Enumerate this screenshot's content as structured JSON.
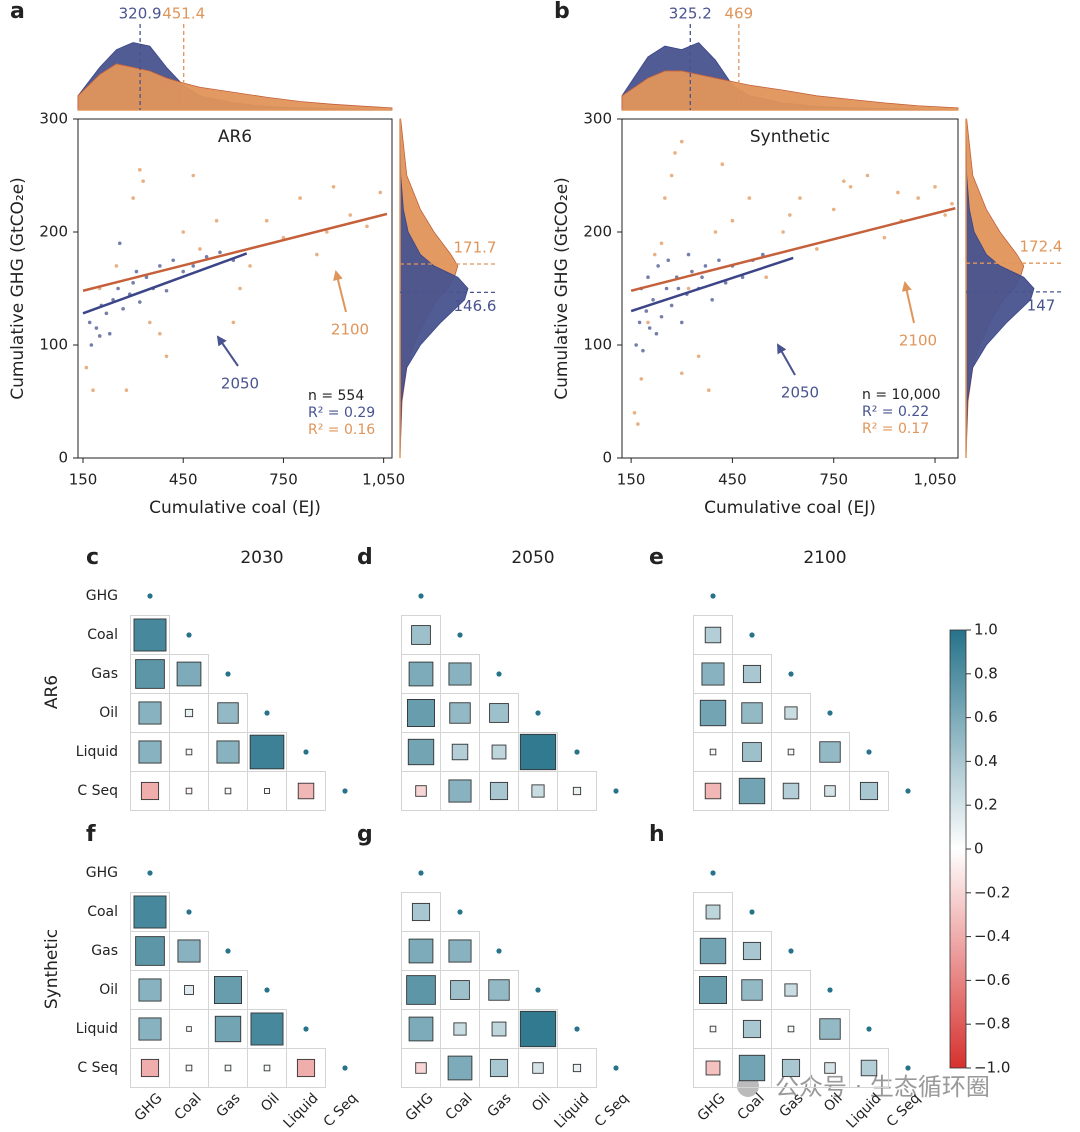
{
  "chart_data": [
    {
      "type": "scatter",
      "letter": "a",
      "title": "AR6",
      "xlabel": "Cumulative coal (EJ)",
      "ylabel": "Cumulative GHG (GtCO₂e)",
      "xlim": [
        135,
        1075
      ],
      "ylim": [
        0,
        300
      ],
      "xticks": [
        150,
        450,
        750,
        {
          "value": 1050,
          "label": "1,050"
        }
      ],
      "yticks": [
        0,
        100,
        200,
        300
      ],
      "n_label": "n = 554",
      "density_x": [
        135,
        200,
        250,
        300,
        350,
        400,
        450,
        500,
        600,
        700,
        800,
        900,
        1000,
        1075
      ],
      "density_y": [
        0,
        50,
        80,
        100,
        120,
        140,
        150,
        160,
        170,
        180,
        200,
        220,
        250,
        300
      ],
      "series": [
        {
          "name": "2050",
          "color": "#48538f",
          "fit_color": "#3b4588",
          "x": [
            170,
            190,
            205,
            220,
            240,
            255,
            270,
            290,
            300,
            320,
            340,
            360,
            380,
            400,
            420,
            450,
            480,
            520,
            560,
            600,
            175,
            230,
            310,
            260,
            200
          ],
          "y": [
            120,
            115,
            135,
            128,
            140,
            150,
            132,
            145,
            155,
            138,
            160,
            150,
            170,
            148,
            175,
            165,
            170,
            178,
            182,
            175,
            100,
            110,
            165,
            190,
            108
          ],
          "fit_x": [
            150,
            640
          ],
          "fit_y": [
            128,
            181
          ],
          "median_x": 320.9,
          "median_y": 146.6,
          "r2_label": "R² = 0.29",
          "top_density": [
            0.2,
            0.6,
            0.85,
            0.95,
            0.9,
            0.6,
            0.35,
            0.2,
            0.1,
            0.05,
            0.03,
            0.02,
            0.01,
            0
          ],
          "right_density": [
            0,
            0.02,
            0.1,
            0.3,
            0.6,
            0.95,
            1,
            0.85,
            0.5,
            0.3,
            0.12,
            0.05,
            0.01,
            0
          ]
        },
        {
          "name": "2100",
          "color": "#e0955a",
          "fit_color": "#c5603a",
          "x": [
            160,
            200,
            250,
            300,
            320,
            350,
            400,
            450,
            500,
            550,
            600,
            650,
            700,
            750,
            800,
            850,
            900,
            950,
            1000,
            1040,
            280,
            380,
            480,
            620,
            880,
            180,
            330
          ],
          "y": [
            80,
            150,
            170,
            230,
            255,
            120,
            90,
            200,
            185,
            210,
            120,
            170,
            210,
            195,
            230,
            180,
            240,
            215,
            205,
            235,
            60,
            110,
            250,
            150,
            200,
            60,
            245
          ],
          "fit_x": [
            150,
            1060
          ],
          "fit_y": [
            148,
            216
          ],
          "median_x": 451.4,
          "median_y": 171.7,
          "r2_label": "R² = 0.16",
          "top_density": [
            0.2,
            0.5,
            0.65,
            0.6,
            0.55,
            0.45,
            0.38,
            0.32,
            0.25,
            0.18,
            0.12,
            0.08,
            0.05,
            0.03
          ],
          "right_density": [
            0,
            0.03,
            0.1,
            0.2,
            0.35,
            0.55,
            0.7,
            0.8,
            0.85,
            0.75,
            0.5,
            0.3,
            0.1,
            0.01
          ]
        }
      ]
    },
    {
      "type": "scatter",
      "letter": "b",
      "title": "Synthetic",
      "xlabel": "Cumulative coal (EJ)",
      "ylabel": "Cumulative GHG (GtCO₂e)",
      "xlim": [
        123,
        1118
      ],
      "ylim": [
        0,
        300
      ],
      "xticks": [
        150,
        450,
        750,
        {
          "value": 1050,
          "label": "1,050"
        }
      ],
      "yticks": [
        0,
        100,
        200,
        300
      ],
      "n_label": "n = 10,000",
      "density_x": [
        123,
        200,
        250,
        300,
        350,
        400,
        450,
        500,
        600,
        700,
        800,
        900,
        1000,
        1118
      ],
      "density_y": [
        0,
        50,
        80,
        100,
        120,
        140,
        150,
        160,
        170,
        180,
        200,
        220,
        250,
        300
      ],
      "series": [
        {
          "name": "2050",
          "color": "#48538f",
          "fit_color": "#3b4588",
          "x": [
            165,
            175,
            185,
            195,
            205,
            215,
            225,
            240,
            255,
            270,
            285,
            300,
            315,
            330,
            350,
            370,
            390,
            410,
            430,
            450,
            480,
            510,
            540,
            180,
            200,
            230,
            260,
            290,
            320,
            360
          ],
          "y": [
            100,
            120,
            95,
            130,
            115,
            140,
            110,
            125,
            150,
            135,
            160,
            120,
            145,
            165,
            150,
            170,
            140,
            175,
            155,
            170,
            160,
            175,
            180,
            150,
            160,
            170,
            175,
            150,
            180,
            160
          ],
          "fit_x": [
            150,
            630
          ],
          "fit_y": [
            130,
            177
          ],
          "median_x": 325.2,
          "median_y": 147.0,
          "r2_label": "R² = 0.22",
          "top_density": [
            0.2,
            0.75,
            0.9,
            0.85,
            0.95,
            0.7,
            0.35,
            0.2,
            0.1,
            0.05,
            0.03,
            0.02,
            0.01,
            0
          ],
          "right_density": [
            0,
            0.02,
            0.1,
            0.3,
            0.6,
            0.95,
            1,
            0.85,
            0.5,
            0.3,
            0.12,
            0.05,
            0.01,
            0
          ]
        },
        {
          "name": "2100",
          "color": "#e0955a",
          "fit_color": "#c5603a",
          "x": [
            160,
            180,
            200,
            220,
            250,
            280,
            300,
            320,
            350,
            380,
            400,
            450,
            500,
            550,
            600,
            650,
            700,
            750,
            800,
            850,
            900,
            950,
            1000,
            1050,
            1080,
            1100,
            240,
            270,
            420,
            620,
            780,
            940,
            170,
            300
          ],
          "y": [
            40,
            70,
            120,
            180,
            230,
            270,
            280,
            150,
            90,
            60,
            200,
            210,
            230,
            160,
            200,
            230,
            185,
            220,
            240,
            250,
            195,
            210,
            230,
            240,
            215,
            225,
            190,
            250,
            260,
            215,
            245,
            235,
            30,
            75
          ],
          "fit_x": [
            150,
            1110
          ],
          "fit_y": [
            148,
            221
          ],
          "median_x": 469.0,
          "median_y": 172.4,
          "r2_label": "R² = 0.17",
          "top_density": [
            0.2,
            0.45,
            0.55,
            0.55,
            0.5,
            0.45,
            0.4,
            0.35,
            0.28,
            0.2,
            0.15,
            0.1,
            0.06,
            0.03
          ],
          "right_density": [
            0,
            0.03,
            0.1,
            0.2,
            0.35,
            0.55,
            0.7,
            0.8,
            0.85,
            0.75,
            0.5,
            0.3,
            0.1,
            0.01
          ]
        }
      ]
    },
    {
      "type": "correlation",
      "letter": "c",
      "title": "2030",
      "row_title": "AR6",
      "row_labels": [
        "GHG",
        "Coal",
        "Gas",
        "Oil",
        "Liquid",
        "C Seq"
      ],
      "matrix": [
        [
          1
        ],
        [
          0.85,
          1
        ],
        [
          0.75,
          0.6,
          1
        ],
        [
          0.55,
          0.1,
          0.5,
          1
        ],
        [
          0.55,
          0.05,
          0.55,
          0.9,
          1
        ],
        [
          -0.4,
          -0.05,
          0.05,
          0.03,
          -0.35,
          1
        ]
      ]
    },
    {
      "type": "correlation",
      "letter": "d",
      "title": "2050",
      "matrix": [
        [
          1
        ],
        [
          0.45,
          1
        ],
        [
          0.6,
          0.55,
          1
        ],
        [
          0.7,
          0.5,
          0.45,
          1
        ],
        [
          0.65,
          0.35,
          0.3,
          0.95,
          1
        ],
        [
          -0.2,
          0.55,
          0.4,
          0.25,
          0.1,
          1
        ]
      ]
    },
    {
      "type": "correlation",
      "letter": "e",
      "title": "2100",
      "matrix": [
        [
          1
        ],
        [
          0.35,
          1
        ],
        [
          0.55,
          0.4,
          1
        ],
        [
          0.65,
          0.5,
          0.25,
          1
        ],
        [
          0.05,
          0.45,
          0.05,
          0.5,
          1
        ],
        [
          -0.35,
          0.65,
          0.35,
          0.2,
          0.4,
          1
        ]
      ]
    },
    {
      "type": "correlation",
      "letter": "f",
      "row_title": "Synthetic",
      "row_labels": [
        "GHG",
        "Coal",
        "Gas",
        "Oil",
        "Liquid",
        "C Seq"
      ],
      "col_labels": [
        "GHG",
        "Coal",
        "Gas",
        "Oil",
        "Liquid",
        "C Seq"
      ],
      "matrix": [
        [
          1
        ],
        [
          0.85,
          1
        ],
        [
          0.75,
          0.55,
          1
        ],
        [
          0.55,
          0.15,
          0.7,
          1
        ],
        [
          0.55,
          0.02,
          0.65,
          0.85,
          1
        ],
        [
          -0.4,
          0.05,
          0.05,
          0.05,
          -0.4,
          1
        ]
      ]
    },
    {
      "type": "correlation",
      "letter": "g",
      "col_labels": [
        "GHG",
        "Coal",
        "Gas",
        "Oil",
        "Liquid",
        "C Seq"
      ],
      "matrix": [
        [
          1
        ],
        [
          0.4,
          1
        ],
        [
          0.6,
          0.55,
          1
        ],
        [
          0.75,
          0.45,
          0.5,
          1
        ],
        [
          0.6,
          0.25,
          0.3,
          0.95,
          1
        ],
        [
          -0.2,
          0.6,
          0.4,
          0.2,
          0.1,
          1
        ]
      ]
    },
    {
      "type": "correlation",
      "letter": "h",
      "col_labels": [
        "GHG",
        "Coal",
        "Gas",
        "Oil",
        "Liquid",
        "C Seq"
      ],
      "matrix": [
        [
          1
        ],
        [
          0.3,
          1
        ],
        [
          0.65,
          0.4,
          1
        ],
        [
          0.7,
          0.5,
          0.25,
          1
        ],
        [
          0.05,
          0.4,
          0.05,
          0.5,
          1
        ],
        [
          -0.3,
          0.65,
          0.4,
          0.2,
          0.35,
          1
        ]
      ]
    },
    {
      "type": "colorbar",
      "colormap": [
        "#d6312e",
        "#ffffff",
        "#26738a"
      ],
      "ylim": [
        -1,
        1
      ],
      "yticks": [
        {
          "value": 1,
          "label": "1.0"
        },
        0.8,
        0.6,
        0.4,
        0.2,
        0,
        {
          "value": -0.2,
          "label": "−0.2"
        },
        {
          "value": -0.4,
          "label": "−0.4"
        },
        {
          "value": -0.6,
          "label": "−0.6"
        },
        {
          "value": -0.8,
          "label": "−0.8"
        },
        {
          "value": -1,
          "label": "−1.0"
        }
      ]
    }
  ],
  "watermark": "公众号 · 生态循环圈"
}
